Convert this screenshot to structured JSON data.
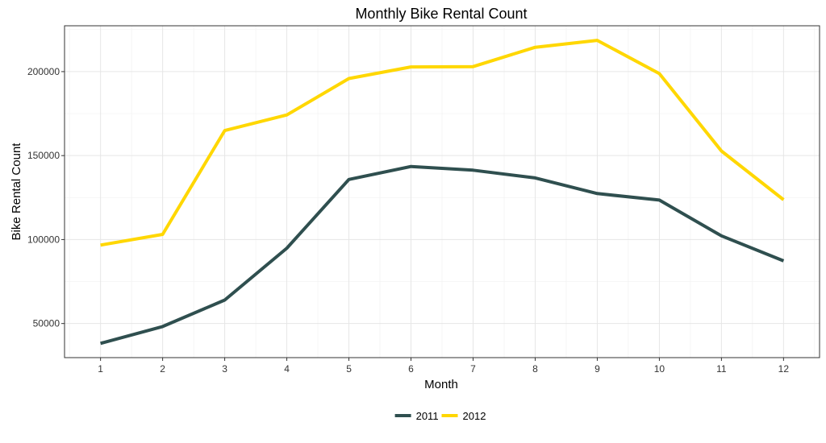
{
  "chart_data": {
    "type": "line",
    "title": "Monthly Bike Rental Count",
    "xlabel": "Month",
    "ylabel": "Bike Rental Count",
    "x": [
      1,
      2,
      3,
      4,
      5,
      6,
      7,
      8,
      9,
      10,
      11,
      12
    ],
    "x_ticks": [
      "1",
      "2",
      "3",
      "4",
      "5",
      "6",
      "7",
      "8",
      "9",
      "10",
      "11",
      "12"
    ],
    "y_ticks": [
      50000,
      100000,
      150000,
      200000
    ],
    "y_tick_labels": [
      "50000",
      "100000",
      "150000",
      "200000"
    ],
    "xlim": [
      0.42,
      12.58
    ],
    "ylim": [
      29700,
      227300
    ],
    "grid": true,
    "legend_position": "bottom",
    "series": [
      {
        "name": "2011",
        "color": "#2f4f4f",
        "values": [
          38200,
          48200,
          64000,
          94900,
          135800,
          143500,
          141300,
          136700,
          127400,
          123500,
          102200,
          87300
        ]
      },
      {
        "name": "2012",
        "color": "#ffd700",
        "values": [
          96700,
          103100,
          164900,
          174200,
          195900,
          202800,
          203000,
          214500,
          218600,
          198800,
          152700,
          123700
        ]
      }
    ]
  }
}
